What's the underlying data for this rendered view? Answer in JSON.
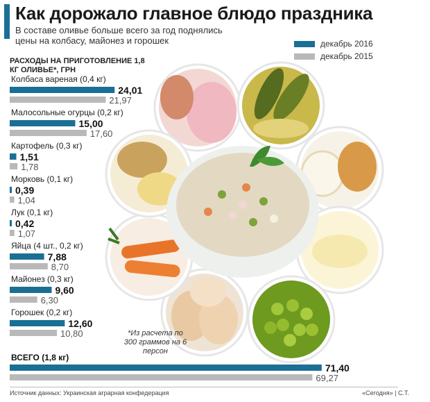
{
  "header": {
    "title": "Как дорожало главное блюдо праздника",
    "subtitle": "В составе оливье больше всего за год поднялись цены на колбасу, майонез и горошек"
  },
  "legend": [
    {
      "label": "декабрь 2016",
      "color": "#1b6f95"
    },
    {
      "label": "декабрь 2015",
      "color": "#b9b9b9"
    }
  ],
  "chart_heading": "РАСХОДЫ НА ПРИГОТОВЛЕНИЕ 1,8 КГ ОЛИВЬЕ*, ГРН",
  "footnote": "*Из расчета по 300 граммов на 6 персон",
  "source": "Источник данных: Украинская аграрная конфедерация",
  "credit": "«Сегодня» | С.Т.",
  "chart_data": {
    "type": "bar",
    "orientation": "horizontal",
    "title": "Как дорожало главное блюдо праздника",
    "xlabel": "",
    "ylabel": "РАСХОДЫ НА ПРИГОТОВЛЕНИЕ 1,8 КГ ОЛИВЬЕ*, ГРН",
    "legend_position": "top-right",
    "grid": false,
    "categories": [
      "Колбаса вареная (0,4 кг)",
      "Малосольные огурцы (0,2 кг)",
      "Картофель (0,3 кг)",
      "Морковь (0,1 кг)",
      "Лук (0,1 кг)",
      "Яйца (4 шт., 0,2 кг)",
      "Майонез (0,3 кг)",
      "Горошек (0,2 кг)"
    ],
    "series": [
      {
        "name": "декабрь 2016",
        "values": [
          24.01,
          15.0,
          1.51,
          0.39,
          0.42,
          7.88,
          9.6,
          12.6
        ],
        "labels": [
          "24,01",
          "15,00",
          "1,51",
          "0,39",
          "0,42",
          "7,88",
          "9,60",
          "12,60"
        ],
        "color": "#1b6f95"
      },
      {
        "name": "декабрь 2015",
        "values": [
          21.97,
          17.6,
          1.78,
          1.04,
          1.07,
          8.7,
          6.3,
          10.8
        ],
        "labels": [
          "21,97",
          "17,60",
          "1,78",
          "1,04",
          "1,07",
          "8,70",
          "6,30",
          "10,80"
        ],
        "color": "#b9b9b9"
      }
    ],
    "total": {
      "label": "ВСЕГО (1,8 кг)",
      "values": [
        71.4,
        69.27
      ],
      "labels": [
        "71,40",
        "69,27"
      ]
    }
  }
}
